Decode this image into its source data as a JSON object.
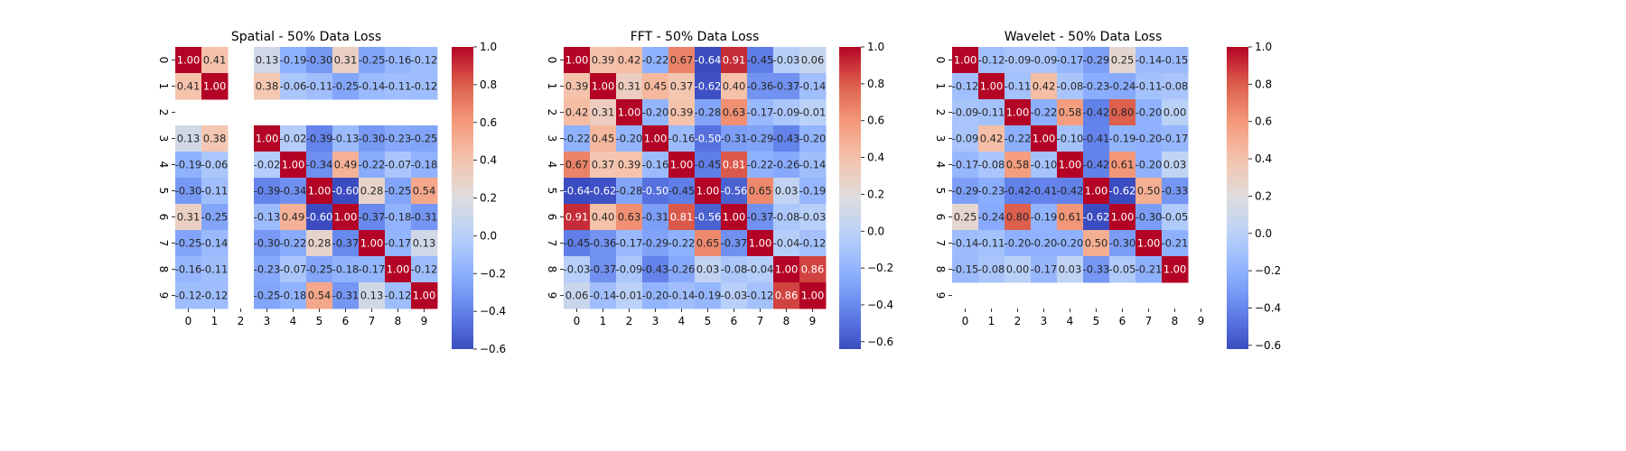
{
  "figure": {
    "panels": [
      {
        "title": "Spatial - 50% Data Loss"
      },
      {
        "title": "FFT - 50% Data Loss"
      },
      {
        "title": "Wavelet - 50% Data Loss"
      }
    ]
  },
  "chart_data": [
    {
      "type": "heatmap",
      "title": "Spatial - 50% Data Loss",
      "xlabel": "",
      "ylabel": "",
      "x_categories": [
        "0",
        "1",
        "2",
        "3",
        "4",
        "5",
        "6",
        "7",
        "8",
        "9"
      ],
      "y_categories": [
        "0",
        "1",
        "2",
        "3",
        "4",
        "5",
        "6",
        "7",
        "8",
        "9"
      ],
      "colormap": "coolwarm",
      "vmin": -0.6,
      "vmax": 1.0,
      "colorbar_ticks": [
        -0.6,
        -0.4,
        -0.2,
        0.0,
        0.2,
        0.4,
        0.6,
        0.8,
        1.0
      ],
      "colorbar_tick_labels": [
        "−0.6",
        "−0.4",
        "−0.2",
        "0.0",
        "0.2",
        "0.4",
        "0.6",
        "0.8",
        "1.0"
      ],
      "values": [
        [
          1.0,
          0.41,
          null,
          0.13,
          -0.19,
          -0.3,
          0.31,
          -0.25,
          -0.16,
          -0.12
        ],
        [
          0.41,
          1.0,
          null,
          0.38,
          -0.06,
          -0.11,
          -0.25,
          -0.14,
          -0.11,
          -0.12
        ],
        [
          null,
          null,
          null,
          null,
          null,
          null,
          null,
          null,
          null,
          null
        ],
        [
          0.13,
          0.38,
          null,
          1.0,
          -0.02,
          -0.39,
          -0.13,
          -0.3,
          -0.23,
          -0.25
        ],
        [
          -0.19,
          -0.06,
          null,
          -0.02,
          1.0,
          -0.34,
          0.49,
          -0.22,
          -0.07,
          -0.18
        ],
        [
          -0.3,
          -0.11,
          null,
          -0.39,
          -0.34,
          1.0,
          -0.6,
          0.28,
          -0.25,
          0.54
        ],
        [
          0.31,
          -0.25,
          null,
          -0.13,
          0.49,
          -0.6,
          1.0,
          -0.37,
          -0.18,
          -0.31
        ],
        [
          -0.25,
          -0.14,
          null,
          -0.3,
          -0.22,
          0.28,
          -0.37,
          1.0,
          -0.17,
          0.13
        ],
        [
          -0.16,
          -0.11,
          null,
          -0.23,
          -0.07,
          -0.25,
          -0.18,
          -0.17,
          1.0,
          -0.12
        ],
        [
          -0.12,
          -0.12,
          null,
          -0.25,
          -0.18,
          0.54,
          -0.31,
          0.13,
          -0.12,
          1.0
        ]
      ]
    },
    {
      "type": "heatmap",
      "title": "FFT - 50% Data Loss",
      "xlabel": "",
      "ylabel": "",
      "x_categories": [
        "0",
        "1",
        "2",
        "3",
        "4",
        "5",
        "6",
        "7",
        "8",
        "9"
      ],
      "y_categories": [
        "0",
        "1",
        "2",
        "3",
        "4",
        "5",
        "6",
        "7",
        "8",
        "9"
      ],
      "colormap": "coolwarm",
      "vmin": -0.64,
      "vmax": 1.0,
      "colorbar_ticks": [
        -0.6,
        -0.4,
        -0.2,
        0.0,
        0.2,
        0.4,
        0.6,
        0.8,
        1.0
      ],
      "colorbar_tick_labels": [
        "−0.6",
        "−0.4",
        "−0.2",
        "0.0",
        "0.2",
        "0.4",
        "0.6",
        "0.8",
        "1.0"
      ],
      "values": [
        [
          1.0,
          0.39,
          0.42,
          -0.22,
          0.67,
          -0.64,
          0.91,
          -0.45,
          -0.03,
          0.06
        ],
        [
          0.39,
          1.0,
          0.31,
          0.45,
          0.37,
          -0.62,
          0.4,
          -0.36,
          -0.37,
          -0.14
        ],
        [
          0.42,
          0.31,
          1.0,
          -0.2,
          0.39,
          -0.28,
          0.63,
          -0.17,
          -0.09,
          -0.01
        ],
        [
          -0.22,
          0.45,
          -0.2,
          1.0,
          -0.16,
          -0.5,
          -0.31,
          -0.29,
          -0.43,
          -0.2
        ],
        [
          0.67,
          0.37,
          0.39,
          -0.16,
          1.0,
          -0.45,
          0.81,
          -0.22,
          -0.26,
          -0.14
        ],
        [
          -0.64,
          -0.62,
          -0.28,
          -0.5,
          -0.45,
          1.0,
          -0.56,
          0.65,
          0.03,
          -0.19
        ],
        [
          0.91,
          0.4,
          0.63,
          -0.31,
          0.81,
          -0.56,
          1.0,
          -0.37,
          -0.08,
          -0.03
        ],
        [
          -0.45,
          -0.36,
          -0.17,
          -0.29,
          -0.22,
          0.65,
          -0.37,
          1.0,
          -0.04,
          -0.12
        ],
        [
          -0.03,
          -0.37,
          -0.09,
          -0.43,
          -0.26,
          0.03,
          -0.08,
          -0.04,
          1.0,
          0.86
        ],
        [
          0.06,
          -0.14,
          -0.01,
          -0.2,
          -0.14,
          -0.19,
          -0.03,
          -0.12,
          0.86,
          1.0
        ]
      ]
    },
    {
      "type": "heatmap",
      "title": "Wavelet - 50% Data Loss",
      "xlabel": "",
      "ylabel": "",
      "x_categories": [
        "0",
        "1",
        "2",
        "3",
        "4",
        "5",
        "6",
        "7",
        "8",
        "9"
      ],
      "y_categories": [
        "0",
        "1",
        "2",
        "3",
        "4",
        "5",
        "6",
        "7",
        "8",
        "9"
      ],
      "colormap": "coolwarm",
      "vmin": -0.62,
      "vmax": 1.0,
      "colorbar_ticks": [
        -0.6,
        -0.4,
        -0.2,
        0.0,
        0.2,
        0.4,
        0.6,
        0.8,
        1.0
      ],
      "colorbar_tick_labels": [
        "−0.6",
        "−0.4",
        "−0.2",
        "0.0",
        "0.2",
        "0.4",
        "0.6",
        "0.8",
        "1.0"
      ],
      "values": [
        [
          1.0,
          -0.12,
          -0.09,
          -0.09,
          -0.17,
          -0.29,
          0.25,
          -0.14,
          -0.15,
          null
        ],
        [
          -0.12,
          1.0,
          -0.11,
          0.42,
          -0.08,
          -0.23,
          -0.24,
          -0.11,
          -0.08,
          null
        ],
        [
          -0.09,
          -0.11,
          1.0,
          -0.22,
          0.58,
          -0.42,
          0.8,
          -0.2,
          0.0,
          null
        ],
        [
          -0.09,
          0.42,
          -0.22,
          1.0,
          -0.1,
          -0.41,
          -0.19,
          -0.2,
          -0.17,
          null
        ],
        [
          -0.17,
          -0.08,
          0.58,
          -0.1,
          1.0,
          -0.42,
          0.61,
          -0.2,
          0.03,
          null
        ],
        [
          -0.29,
          -0.23,
          -0.42,
          -0.41,
          -0.42,
          1.0,
          -0.62,
          0.5,
          -0.33,
          null
        ],
        [
          0.25,
          -0.24,
          0.8,
          -0.19,
          0.61,
          -0.62,
          1.0,
          -0.3,
          -0.05,
          null
        ],
        [
          -0.14,
          -0.11,
          -0.2,
          -0.2,
          -0.2,
          0.5,
          -0.3,
          1.0,
          -0.21,
          null
        ],
        [
          -0.15,
          -0.08,
          0.0,
          -0.17,
          0.03,
          -0.33,
          -0.05,
          -0.21,
          1.0,
          null
        ],
        [
          null,
          null,
          null,
          null,
          null,
          null,
          null,
          null,
          null,
          null
        ]
      ]
    }
  ]
}
